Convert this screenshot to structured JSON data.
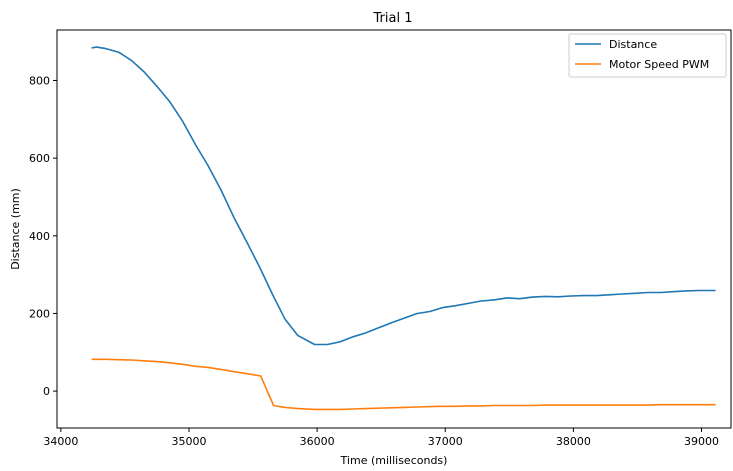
{
  "chart_data": {
    "type": "line",
    "title": "Trial 1",
    "xlabel": "Time (milliseconds)",
    "ylabel": "Distance (mm)",
    "xlim": [
      33970,
      39230
    ],
    "ylim": [
      -95,
      930
    ],
    "xticks": [
      34000,
      35000,
      36000,
      37000,
      38000,
      39000
    ],
    "yticks": [
      0,
      200,
      400,
      600,
      800
    ],
    "grid": false,
    "legend_position": "top-right",
    "series": [
      {
        "name": "Distance",
        "color": "#1f77b4",
        "x": [
          34240,
          34280,
          34350,
          34450,
          34550,
          34650,
          34750,
          34850,
          34950,
          35050,
          35150,
          35250,
          35350,
          35450,
          35550,
          35650,
          35750,
          35850,
          35980,
          36080,
          36180,
          36280,
          36380,
          36480,
          36580,
          36680,
          36780,
          36880,
          36980,
          37080,
          37180,
          37280,
          37380,
          37480,
          37580,
          37680,
          37780,
          37880,
          37980,
          38080,
          38180,
          38280,
          38380,
          38480,
          38580,
          38680,
          38780,
          38880,
          38980,
          39110
        ],
        "y": [
          884,
          886,
          882,
          873,
          852,
          822,
          785,
          745,
          695,
          635,
          580,
          518,
          448,
          385,
          320,
          250,
          185,
          143,
          120,
          120,
          127,
          140,
          150,
          163,
          176,
          188,
          200,
          205,
          215,
          220,
          226,
          232,
          235,
          240,
          238,
          242,
          244,
          243,
          245,
          246,
          246,
          248,
          250,
          252,
          254,
          254,
          256,
          258,
          259,
          259
        ]
      },
      {
        "name": "Motor Speed PWM",
        "color": "#ff7f0e",
        "x": [
          34240,
          34350,
          34450,
          34550,
          34650,
          34750,
          34850,
          34950,
          35050,
          35150,
          35250,
          35350,
          35450,
          35560,
          35660,
          35750,
          35850,
          35980,
          36080,
          36180,
          36280,
          36380,
          36480,
          36580,
          36680,
          36780,
          36880,
          36980,
          37080,
          37180,
          37280,
          37380,
          37480,
          37580,
          37680,
          37780,
          37880,
          37980,
          38080,
          38180,
          38280,
          38380,
          38480,
          38580,
          38680,
          38780,
          38880,
          38980,
          39110
        ],
        "y": [
          82,
          82,
          81,
          80,
          78,
          76,
          73,
          69,
          64,
          61,
          56,
          50,
          45,
          39,
          -37,
          -42,
          -45,
          -47,
          -47,
          -47,
          -46,
          -45,
          -44,
          -43,
          -42,
          -41,
          -40,
          -39,
          -39,
          -38,
          -38,
          -37,
          -37,
          -37,
          -37,
          -36,
          -36,
          -36,
          -36,
          -36,
          -36,
          -36,
          -36,
          -36,
          -35,
          -35,
          -35,
          -35,
          -35
        ]
      }
    ]
  }
}
